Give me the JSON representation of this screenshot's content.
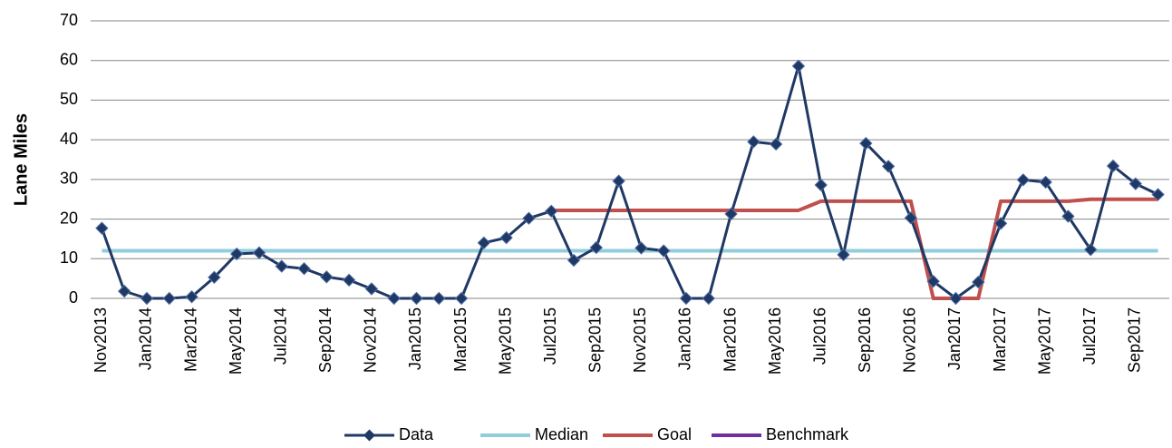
{
  "chart_data": {
    "type": "line",
    "y_label": "Lane Miles",
    "categories": [
      "Nov2013",
      null,
      "Jan2014",
      null,
      "Mar2014",
      null,
      "May2014",
      null,
      "Jul2014",
      null,
      "Sep2014",
      null,
      "Nov2014",
      null,
      "Jan2015",
      null,
      "Mar2015",
      null,
      "May2015",
      null,
      "Jul2015",
      null,
      "Sep2015",
      null,
      "Nov2015",
      null,
      "Jan2016",
      null,
      "Mar2016",
      null,
      "May2016",
      null,
      "Jul2016",
      null,
      "Sep2016",
      null,
      "Nov2016",
      null,
      "Jan2017",
      null,
      "Mar2017",
      null,
      "May2017",
      null,
      "Jul2017",
      null,
      "Sep2017",
      null
    ],
    "series": [
      {
        "name": "Data",
        "color": "#1f3864",
        "marker": "diamond",
        "values": [
          17.7,
          1.8,
          0,
          0,
          0.4,
          5.3,
          11.2,
          11.5,
          8.1,
          7.5,
          5.4,
          4.6,
          2.4,
          0,
          0,
          0,
          0,
          14,
          15.3,
          20.2,
          22,
          9.6,
          12.8,
          29.6,
          12.7,
          12,
          0,
          0,
          21.3,
          39.5,
          38.9,
          58.6,
          28.6,
          11,
          39.1,
          33.3,
          20.3,
          4.3,
          0,
          4.1,
          18.9,
          29.9,
          29.3,
          20.7,
          12.3,
          33.4,
          28.9,
          26.2
        ]
      },
      {
        "name": "Median",
        "color": "#92cddc",
        "values": [
          12,
          12,
          12,
          12,
          12,
          12,
          12,
          12,
          12,
          12,
          12,
          12,
          12,
          12,
          12,
          12,
          12,
          12,
          12,
          12,
          12,
          12,
          12,
          12,
          12,
          12,
          12,
          12,
          12,
          12,
          12,
          12,
          12,
          12,
          12,
          12,
          12,
          12,
          12,
          12,
          12,
          12,
          12,
          12,
          12,
          12,
          12,
          12
        ]
      },
      {
        "name": "Goal",
        "color": "#c0504d",
        "values": [
          null,
          null,
          null,
          null,
          null,
          null,
          null,
          null,
          null,
          null,
          null,
          null,
          null,
          null,
          null,
          null,
          null,
          null,
          null,
          null,
          22.2,
          22.2,
          22.2,
          22.2,
          22.2,
          22.2,
          22.2,
          22.2,
          22.2,
          22.2,
          22.2,
          22.2,
          24.5,
          24.5,
          24.5,
          24.5,
          24.5,
          0,
          0,
          0,
          24.5,
          24.5,
          24.5,
          24.5,
          25,
          25,
          25,
          25
        ]
      },
      {
        "name": "Benchmark",
        "color": "#7030a0",
        "values": [
          null,
          null,
          null,
          null,
          null,
          null,
          null,
          null,
          null,
          null,
          null,
          null,
          null,
          null,
          null,
          null,
          null,
          null,
          null,
          null,
          null,
          null,
          null,
          null,
          null,
          null,
          null,
          null,
          null,
          null,
          null,
          null,
          null,
          null,
          null,
          null,
          null,
          null,
          null,
          null,
          null,
          null,
          null,
          null,
          null,
          null,
          null,
          null
        ]
      }
    ],
    "ylim": [
      0,
      70
    ],
    "yticks": [
      0,
      10,
      20,
      30,
      40,
      50,
      60,
      70
    ],
    "grid": true,
    "legend": "bottom"
  }
}
